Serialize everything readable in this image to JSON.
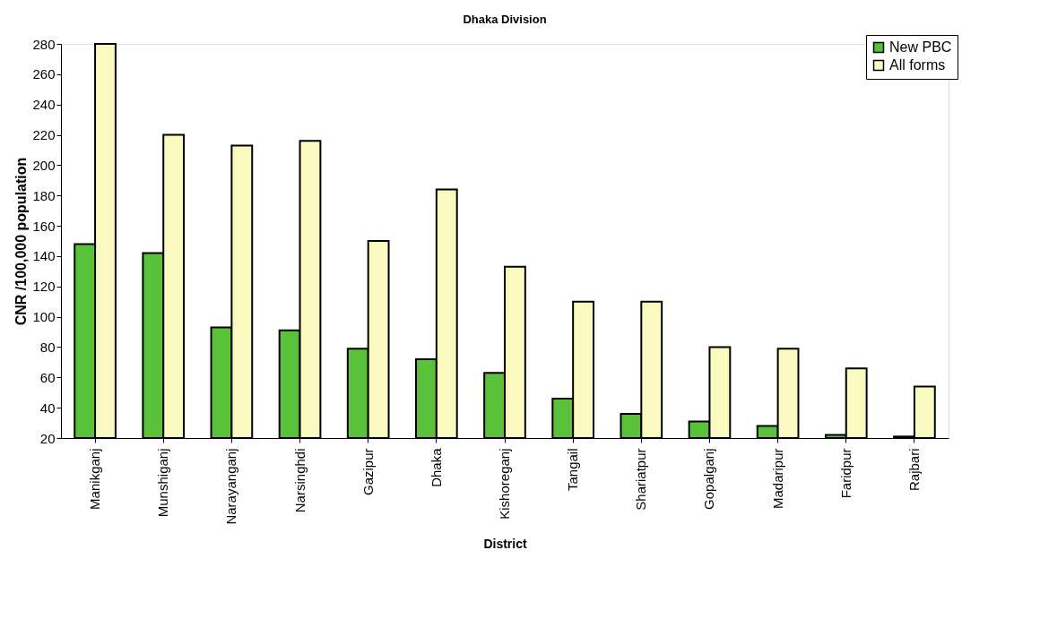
{
  "chart_data": {
    "type": "bar",
    "title": "Dhaka Division",
    "xlabel": "District",
    "ylabel": "CNR /100,000 population",
    "categories": [
      "Manikganj",
      "Munshiganj",
      "Narayanganj",
      "Narsinghdi",
      "Gazipur",
      "Dhaka",
      "Kishoreganj",
      "Tangail",
      "Shariatpur",
      "Gopalganj",
      "Madaripur",
      "Faridpur",
      "Rajbari"
    ],
    "series": [
      {
        "name": "New PBC",
        "color": "#5ac23a",
        "values": [
          148,
          142,
          93,
          91,
          79,
          72,
          63,
          46,
          36,
          31,
          28,
          22,
          21
        ]
      },
      {
        "name": "All forms",
        "color": "#fafac0",
        "values": [
          280,
          220,
          213,
          216,
          150,
          184,
          133,
          110,
          110,
          80,
          79,
          66,
          54
        ]
      }
    ],
    "ylim": [
      20,
      280
    ],
    "yticks": [
      20,
      40,
      60,
      80,
      100,
      120,
      140,
      160,
      180,
      200,
      220,
      240,
      260,
      280
    ],
    "grid": false,
    "legend": "top right"
  }
}
